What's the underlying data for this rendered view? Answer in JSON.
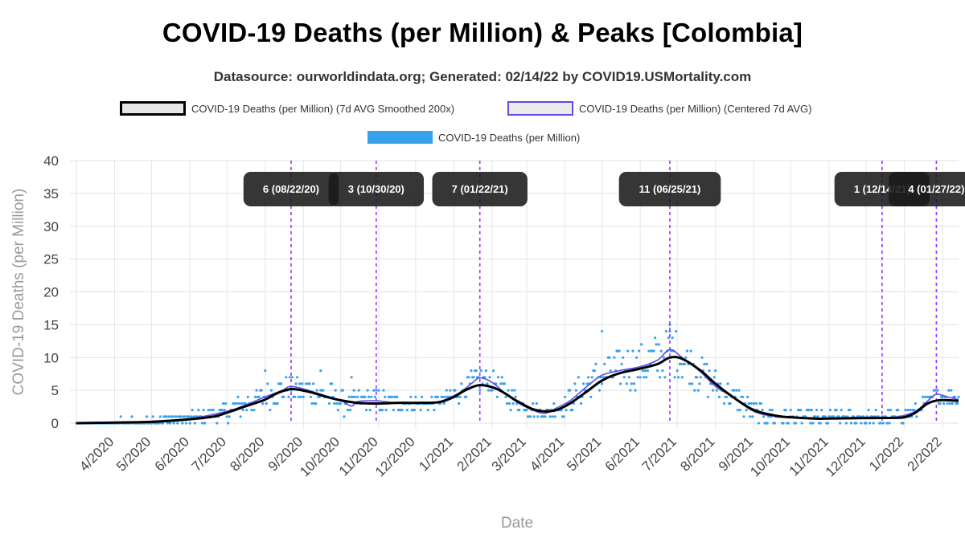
{
  "chart_data": {
    "type": "line",
    "title": "COVID-19 Deaths (per Million) & Peaks [Colombia]",
    "subtitle": "Datasource: ourworldindata.org; Generated: 02/14/22 by COVID19.USMortality.com",
    "xlabel": "Date",
    "ylabel": "COVID-19 Deaths (per Million)",
    "ylim": [
      0,
      40
    ],
    "yticks": [
      0,
      5,
      10,
      15,
      20,
      25,
      30,
      35,
      40
    ],
    "x_range": [
      "2020-03-01",
      "2022-02-14"
    ],
    "xtick_labels": [
      "4/2020",
      "5/2020",
      "6/2020",
      "7/2020",
      "8/2020",
      "9/2020",
      "10/2020",
      "11/2020",
      "12/2020",
      "1/2021",
      "2/2021",
      "3/2021",
      "4/2021",
      "5/2021",
      "6/2021",
      "7/2021",
      "8/2021",
      "9/2021",
      "10/2021",
      "11/2021",
      "12/2021",
      "1/2022",
      "2/2022"
    ],
    "xtick_dates": [
      "2020-04-01",
      "2020-05-01",
      "2020-06-01",
      "2020-07-01",
      "2020-08-01",
      "2020-09-01",
      "2020-10-01",
      "2020-11-01",
      "2020-12-01",
      "2021-01-01",
      "2021-02-01",
      "2021-03-01",
      "2021-04-01",
      "2021-05-01",
      "2021-06-01",
      "2021-07-01",
      "2021-08-01",
      "2021-09-01",
      "2021-10-01",
      "2021-11-01",
      "2021-12-01",
      "2022-01-01",
      "2022-02-01"
    ],
    "grid": true,
    "legend_position": "top",
    "series": [
      {
        "name": "COVID-19 Deaths (per Million) (7d AVG Smoothed 200x)",
        "color": "#000000",
        "style": "line",
        "points": [
          [
            "2020-03-01",
            0
          ],
          [
            "2020-04-01",
            0.1
          ],
          [
            "2020-05-01",
            0.2
          ],
          [
            "2020-06-01",
            0.6
          ],
          [
            "2020-06-20",
            1.0
          ],
          [
            "2020-07-01",
            1.6
          ],
          [
            "2020-07-15",
            2.5
          ],
          [
            "2020-08-01",
            3.6
          ],
          [
            "2020-08-10",
            4.5
          ],
          [
            "2020-08-22",
            5.2
          ],
          [
            "2020-09-05",
            4.8
          ],
          [
            "2020-09-20",
            4.0
          ],
          [
            "2020-10-01",
            3.5
          ],
          [
            "2020-10-15",
            3.1
          ],
          [
            "2020-11-01",
            3.0
          ],
          [
            "2020-11-15",
            3.1
          ],
          [
            "2020-12-01",
            3.1
          ],
          [
            "2020-12-20",
            3.2
          ],
          [
            "2021-01-01",
            4.0
          ],
          [
            "2021-01-10",
            5.0
          ],
          [
            "2021-01-22",
            5.8
          ],
          [
            "2021-02-05",
            5.2
          ],
          [
            "2021-02-20",
            3.5
          ],
          [
            "2021-03-05",
            2.2
          ],
          [
            "2021-03-15",
            1.8
          ],
          [
            "2021-03-25",
            2.0
          ],
          [
            "2021-04-05",
            3.0
          ],
          [
            "2021-04-20",
            5.0
          ],
          [
            "2021-05-01",
            6.5
          ],
          [
            "2021-05-15",
            7.6
          ],
          [
            "2021-06-01",
            8.3
          ],
          [
            "2021-06-15",
            9.0
          ],
          [
            "2021-06-25",
            10.0
          ],
          [
            "2021-07-05",
            9.8
          ],
          [
            "2021-07-20",
            8.0
          ],
          [
            "2021-08-01",
            6.0
          ],
          [
            "2021-08-15",
            4.0
          ],
          [
            "2021-09-01",
            2.0
          ],
          [
            "2021-09-20",
            1.1
          ],
          [
            "2021-10-01",
            0.9
          ],
          [
            "2021-10-20",
            0.7
          ],
          [
            "2021-11-01",
            0.7
          ],
          [
            "2021-12-01",
            0.8
          ],
          [
            "2021-12-20",
            0.8
          ],
          [
            "2022-01-01",
            0.9
          ],
          [
            "2022-01-10",
            1.6
          ],
          [
            "2022-01-20",
            3.0
          ],
          [
            "2022-01-30",
            3.5
          ],
          [
            "2022-02-14",
            3.4
          ]
        ]
      },
      {
        "name": "COVID-19 Deaths (per Million) (Centered 7d AVG)",
        "color": "#5b4be8",
        "style": "line",
        "points": [
          [
            "2020-03-01",
            0
          ],
          [
            "2020-04-01",
            0.1
          ],
          [
            "2020-05-01",
            0.3
          ],
          [
            "2020-06-01",
            0.7
          ],
          [
            "2020-07-01",
            1.8
          ],
          [
            "2020-07-15",
            2.7
          ],
          [
            "2020-08-01",
            4.0
          ],
          [
            "2020-08-15",
            5.0
          ],
          [
            "2020-08-22",
            5.6
          ],
          [
            "2020-09-05",
            5.0
          ],
          [
            "2020-09-20",
            4.1
          ],
          [
            "2020-10-01",
            3.5
          ],
          [
            "2020-10-10",
            2.6
          ],
          [
            "2020-10-15",
            3.3
          ],
          [
            "2020-10-30",
            3.4
          ],
          [
            "2020-11-15",
            3.1
          ],
          [
            "2020-12-01",
            3.0
          ],
          [
            "2020-12-20",
            3.3
          ],
          [
            "2021-01-05",
            4.6
          ],
          [
            "2021-01-15",
            6.0
          ],
          [
            "2021-01-22",
            6.9
          ],
          [
            "2021-02-01",
            6.2
          ],
          [
            "2021-02-15",
            4.0
          ],
          [
            "2021-03-01",
            2.4
          ],
          [
            "2021-03-15",
            1.5
          ],
          [
            "2021-03-25",
            2.3
          ],
          [
            "2021-04-05",
            3.4
          ],
          [
            "2021-04-20",
            5.8
          ],
          [
            "2021-05-01",
            7.3
          ],
          [
            "2021-05-15",
            8.0
          ],
          [
            "2021-06-01",
            8.6
          ],
          [
            "2021-06-15",
            9.6
          ],
          [
            "2021-06-25",
            11.2
          ],
          [
            "2021-07-05",
            10.0
          ],
          [
            "2021-07-20",
            7.8
          ],
          [
            "2021-08-01",
            5.6
          ],
          [
            "2021-08-15",
            4.0
          ],
          [
            "2021-09-01",
            1.8
          ],
          [
            "2021-09-20",
            1.0
          ],
          [
            "2021-10-15",
            0.8
          ],
          [
            "2021-11-15",
            0.7
          ],
          [
            "2021-12-10",
            0.7
          ],
          [
            "2021-12-25",
            0.9
          ],
          [
            "2022-01-10",
            1.8
          ],
          [
            "2022-01-20",
            3.4
          ],
          [
            "2022-01-27",
            4.4
          ],
          [
            "2022-02-05",
            4.0
          ],
          [
            "2022-02-14",
            3.6
          ]
        ]
      },
      {
        "name": "COVID-19 Deaths (per Million)",
        "color": "#36a2eb",
        "style": "dots",
        "note": "daily values scatter around the centered 7d average; integer-valued daily readings",
        "daily_spread": [
          [
            "2020-03-01",
            0
          ],
          [
            "2020-06-01",
            1
          ],
          [
            "2020-08-15",
            2
          ],
          [
            "2020-10-15",
            2
          ],
          [
            "2020-12-20",
            1
          ],
          [
            "2021-01-22",
            2
          ],
          [
            "2021-03-15",
            1
          ],
          [
            "2021-05-01",
            3
          ],
          [
            "2021-06-25",
            4
          ],
          [
            "2021-08-15",
            2
          ],
          [
            "2021-10-15",
            1
          ],
          [
            "2022-01-27",
            1
          ],
          [
            "2022-02-14",
            1
          ]
        ]
      }
    ],
    "peaks": [
      {
        "label": "6 (08/22/20)",
        "date": "2020-08-22"
      },
      {
        "label": "3 (10/30/20)",
        "date": "2020-10-30"
      },
      {
        "label": "7 (01/22/21)",
        "date": "2021-01-22"
      },
      {
        "label": "11 (06/25/21)",
        "date": "2021-06-25"
      },
      {
        "label": "1 (12/14/21)",
        "date": "2021-12-14"
      },
      {
        "label": "4 (01/27/22)",
        "date": "2022-01-27"
      }
    ],
    "peak_line_color": "#9933ff",
    "outliers": [
      [
        "2021-05-01",
        14
      ],
      [
        "2021-06-25",
        15
      ],
      [
        "2020-09-15",
        8
      ],
      [
        "2020-10-10",
        7
      ],
      [
        "2020-08-01",
        8
      ]
    ]
  }
}
